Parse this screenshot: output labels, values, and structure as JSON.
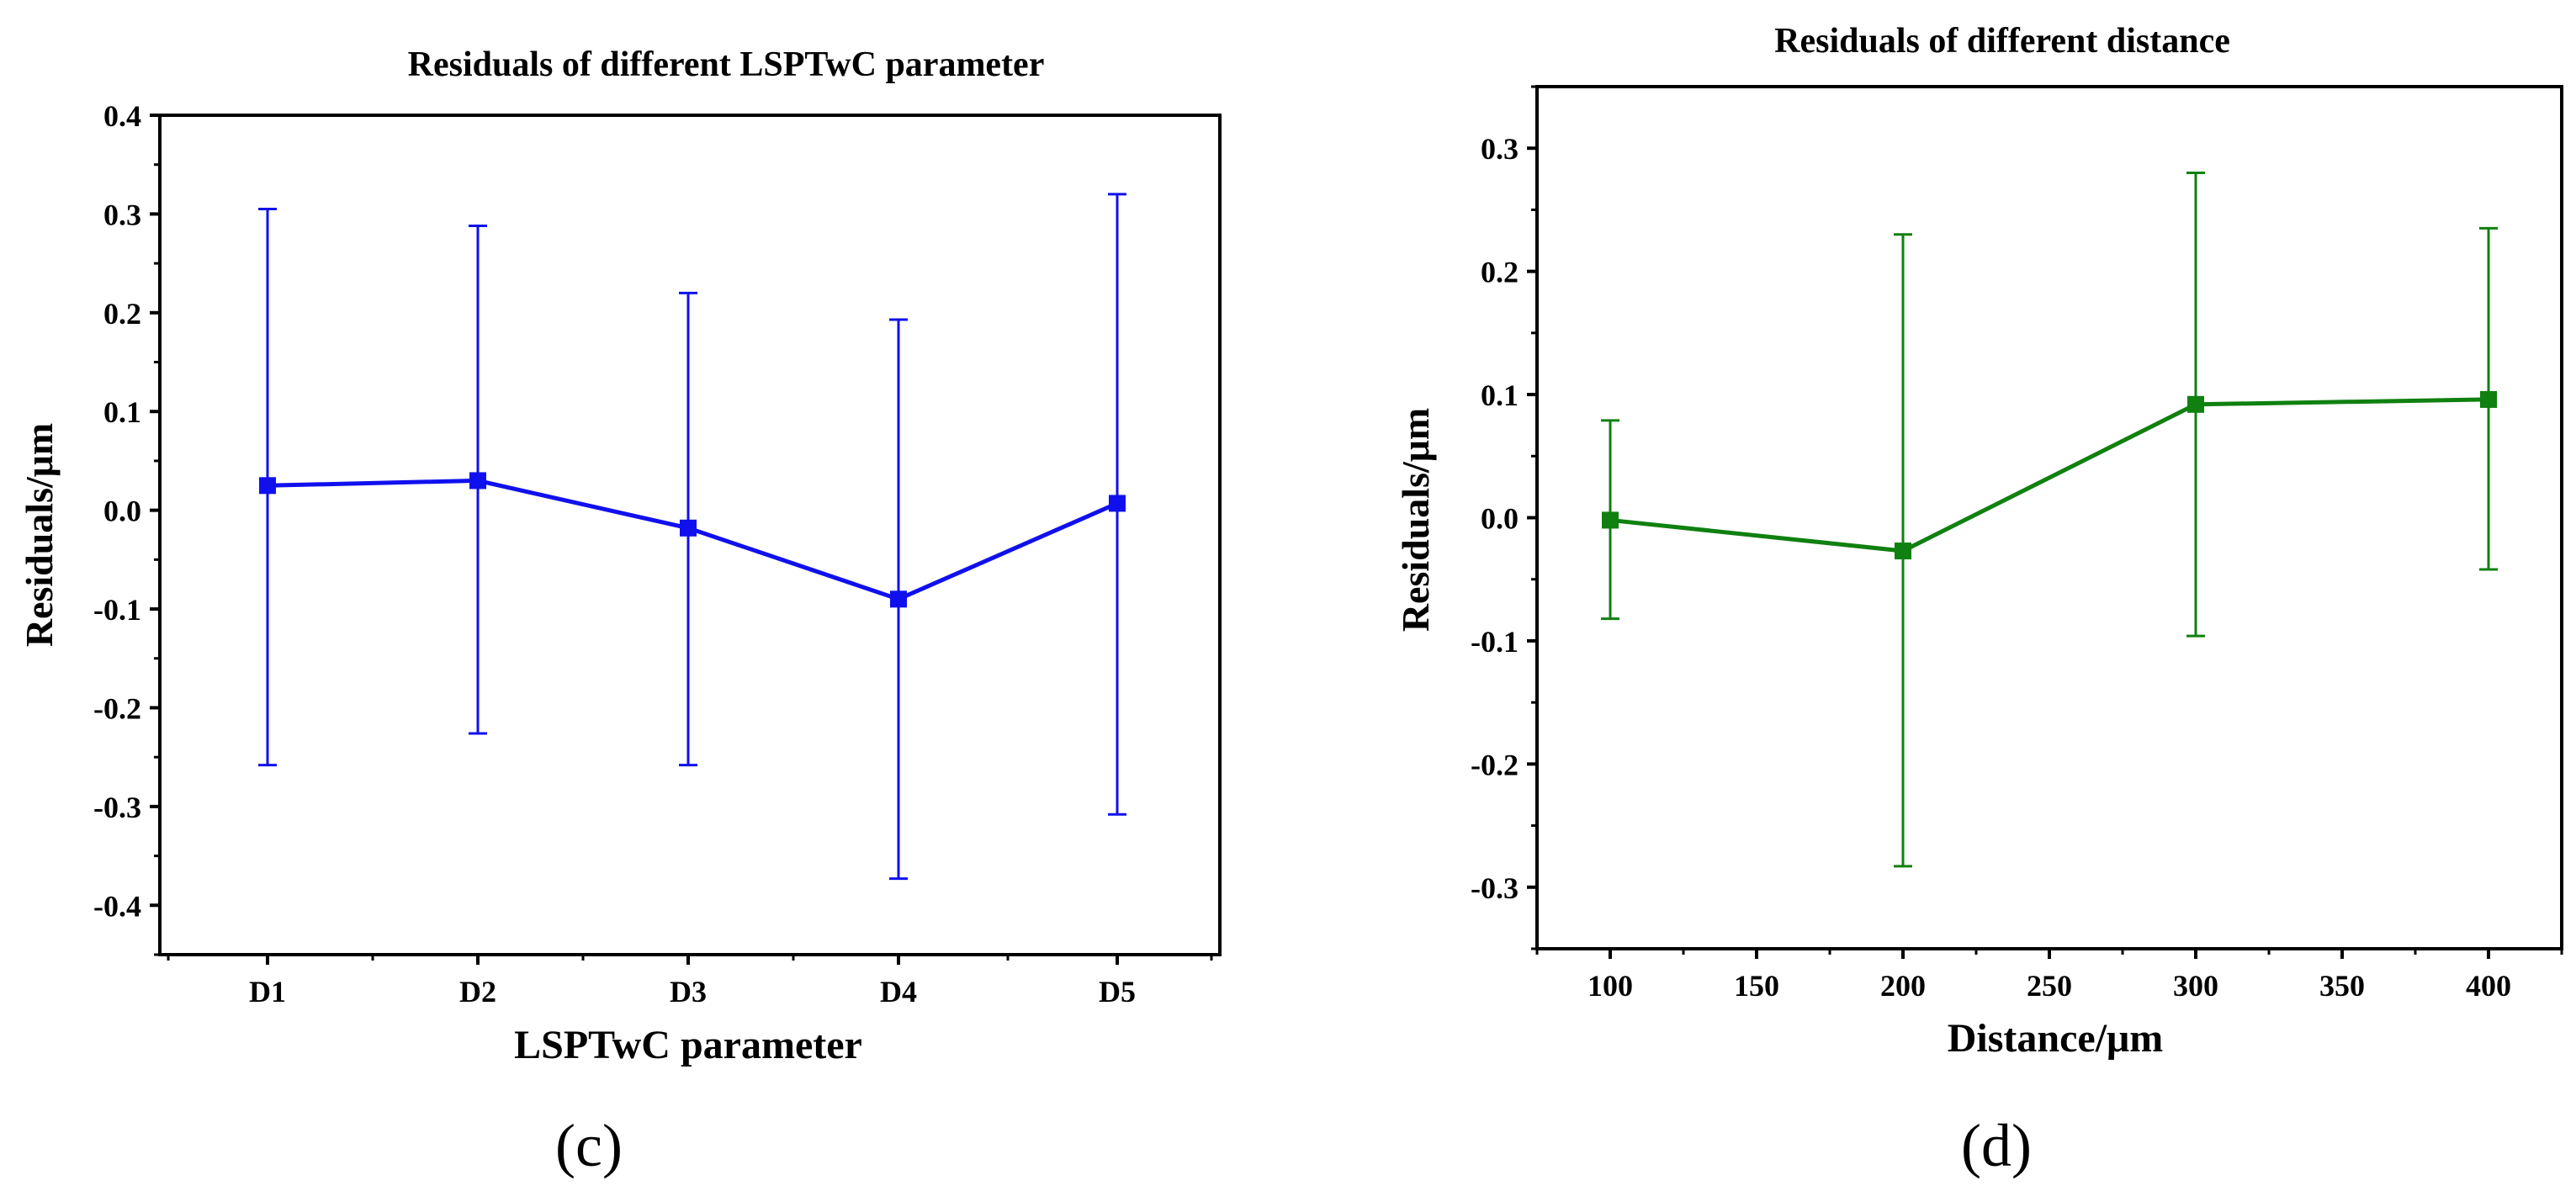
{
  "panels": [
    {
      "id": "c",
      "caption": "(c)",
      "chart_data": {
        "type": "line",
        "title": "Residuals of different LSPTwC parameter",
        "xlabel": "LSPTwC parameter",
        "ylabel": "Residuals/μm",
        "x_axis": "categorical",
        "categories": [
          "D1",
          "D2",
          "D3",
          "D4",
          "D5"
        ],
        "ylim": [
          -0.45,
          0.4
        ],
        "yticks": [
          -0.4,
          -0.3,
          -0.2,
          -0.1,
          0.0,
          0.1,
          0.2,
          0.3,
          0.4
        ],
        "yticklabels": [
          "-0.4",
          "-0.3",
          "-0.2",
          "-0.1",
          "0.0",
          "0.1",
          "0.2",
          "0.3",
          "0.4"
        ],
        "grid": false,
        "color": "#1010ee",
        "marker": "square",
        "series": [
          {
            "values": [
              0.025,
              0.03,
              -0.018,
              -0.09,
              0.007
            ],
            "error_upper": [
              0.305,
              0.288,
              0.22,
              0.193,
              0.32
            ],
            "error_lower": [
              -0.258,
              -0.226,
              -0.258,
              -0.373,
              -0.308
            ]
          }
        ]
      }
    },
    {
      "id": "d",
      "caption": "(d)",
      "chart_data": {
        "type": "line",
        "title": "Residuals of different distance",
        "xlabel": "Distance/μm",
        "ylabel": "Residuals/μm",
        "x_axis": "numeric",
        "xlim": [
          75,
          425
        ],
        "xticks": [
          100,
          150,
          200,
          250,
          300,
          350,
          400
        ],
        "xticklabels": [
          "100",
          "150",
          "200",
          "250",
          "300",
          "350",
          "400"
        ],
        "ylim": [
          -0.35,
          0.35
        ],
        "yticks": [
          -0.3,
          -0.2,
          -0.1,
          0.0,
          0.1,
          0.2,
          0.3
        ],
        "yticklabels": [
          "-0.3",
          "-0.2",
          "-0.1",
          "0.0",
          "0.1",
          "0.2",
          "0.3"
        ],
        "grid": false,
        "color": "#108010",
        "marker": "square",
        "series": [
          {
            "x": [
              100,
              200,
              300,
              400
            ],
            "values": [
              -0.002,
              -0.027,
              0.092,
              0.096
            ],
            "error_upper": [
              0.079,
              0.23,
              0.28,
              0.235
            ],
            "error_lower": [
              -0.082,
              -0.283,
              -0.096,
              -0.042
            ]
          }
        ]
      }
    }
  ]
}
